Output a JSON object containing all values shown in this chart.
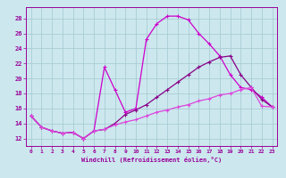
{
  "xlabel": "Windchill (Refroidissement éolien,°C)",
  "background_color": "#cce8ee",
  "grid_color": "#aaccd4",
  "text_color": "#990099",
  "line_color1": "#cc00cc",
  "line_color2": "#880088",
  "line_color3": "#dd44dd",
  "xlim": [
    -0.5,
    23.5
  ],
  "ylim": [
    11.0,
    29.5
  ],
  "xticks": [
    0,
    1,
    2,
    3,
    4,
    5,
    6,
    7,
    8,
    9,
    10,
    11,
    12,
    13,
    14,
    15,
    16,
    17,
    18,
    19,
    20,
    21,
    22,
    23
  ],
  "yticks": [
    12,
    14,
    16,
    18,
    20,
    22,
    24,
    26,
    28
  ],
  "curve1_x": [
    0,
    1,
    2,
    3,
    4,
    5,
    6,
    7,
    8,
    9,
    10,
    11,
    12,
    13,
    14,
    15,
    16,
    17,
    18,
    19,
    20,
    21,
    22,
    23
  ],
  "curve1_y": [
    15.0,
    13.5,
    13.0,
    12.7,
    12.8,
    12.0,
    13.0,
    21.5,
    18.5,
    15.5,
    16.0,
    25.2,
    27.3,
    28.3,
    28.3,
    27.8,
    26.0,
    24.6,
    23.0,
    20.5,
    18.8,
    18.5,
    17.5,
    16.2
  ],
  "curve2_x": [
    0,
    1,
    2,
    3,
    4,
    5,
    6,
    7,
    8,
    9,
    10,
    11,
    12,
    13,
    14,
    15,
    16,
    17,
    18,
    19,
    20,
    21,
    22,
    23
  ],
  "curve2_y": [
    15.0,
    13.5,
    13.0,
    12.7,
    12.8,
    12.0,
    13.0,
    13.2,
    14.0,
    15.2,
    15.8,
    16.5,
    17.5,
    18.5,
    19.5,
    20.5,
    21.5,
    22.2,
    22.8,
    23.0,
    20.5,
    18.8,
    17.2,
    16.2
  ],
  "curve3_x": [
    0,
    1,
    2,
    3,
    4,
    5,
    6,
    7,
    8,
    9,
    10,
    11,
    12,
    13,
    14,
    15,
    16,
    17,
    18,
    19,
    20,
    21,
    22,
    23
  ],
  "curve3_y": [
    15.0,
    13.5,
    13.0,
    12.7,
    12.8,
    12.0,
    13.0,
    13.2,
    13.8,
    14.2,
    14.5,
    15.0,
    15.5,
    15.8,
    16.2,
    16.5,
    17.0,
    17.3,
    17.8,
    18.0,
    18.5,
    18.8,
    16.3,
    16.2
  ]
}
